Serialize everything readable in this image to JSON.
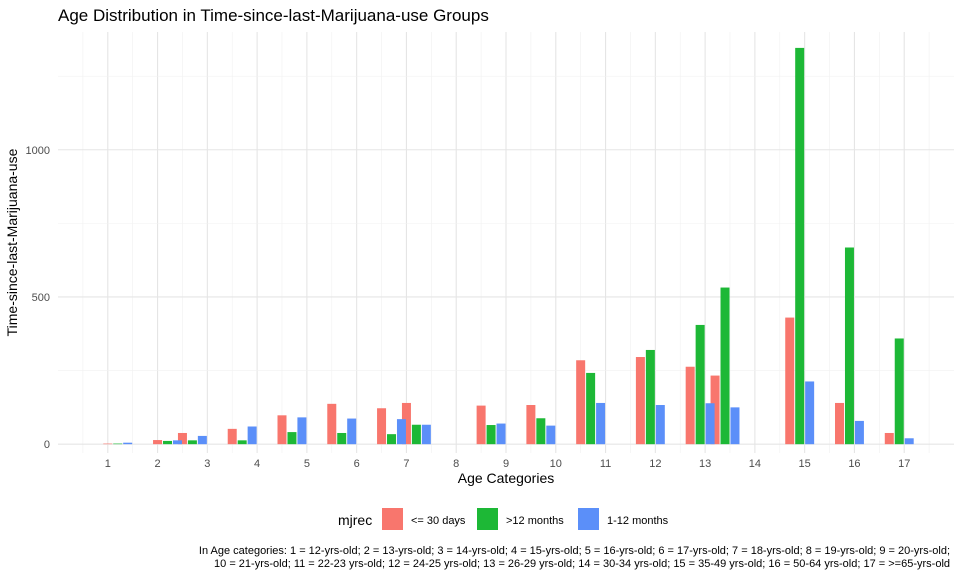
{
  "chart_data": {
    "type": "bar",
    "title": "Age Distribution in Time-since-last-Marijuana-use Groups",
    "xlabel": "Age Categories",
    "ylabel": "Time-since-last-Marijuana-use",
    "ylim": [
      -30,
      1400
    ],
    "yticks": [
      0,
      500,
      1000
    ],
    "grid": true,
    "legend_title": "mjrec",
    "legend_position": "bottom",
    "series": [
      {
        "name": "<= 30 days",
        "color": "#F8766D",
        "points": [
          {
            "x": 1,
            "y": 2
          },
          {
            "x": 2,
            "y": 14
          },
          {
            "x": 2.5,
            "y": 38
          },
          {
            "x": 3.5,
            "y": 52
          },
          {
            "x": 4.5,
            "y": 98
          },
          {
            "x": 5.5,
            "y": 137
          },
          {
            "x": 6.5,
            "y": 122
          },
          {
            "x": 7,
            "y": 140
          },
          {
            "x": 8.5,
            "y": 131
          },
          {
            "x": 9.5,
            "y": 133
          },
          {
            "x": 10.5,
            "y": 285
          },
          {
            "x": 11.7,
            "y": 296
          },
          {
            "x": 12.7,
            "y": 263
          },
          {
            "x": 13.2,
            "y": 233
          },
          {
            "x": 14.7,
            "y": 430
          },
          {
            "x": 15.7,
            "y": 140
          },
          {
            "x": 16.7,
            "y": 38
          }
        ]
      },
      {
        "name": ">12 months",
        "color": "#1DB836",
        "points": [
          {
            "x": 1.2,
            "y": 2
          },
          {
            "x": 2.2,
            "y": 11
          },
          {
            "x": 2.7,
            "y": 13
          },
          {
            "x": 3.7,
            "y": 13
          },
          {
            "x": 4.7,
            "y": 41
          },
          {
            "x": 5.7,
            "y": 38
          },
          {
            "x": 6.7,
            "y": 34
          },
          {
            "x": 7.2,
            "y": 66
          },
          {
            "x": 8.7,
            "y": 65
          },
          {
            "x": 9.7,
            "y": 88
          },
          {
            "x": 10.7,
            "y": 242
          },
          {
            "x": 11.9,
            "y": 320
          },
          {
            "x": 12.9,
            "y": 405
          },
          {
            "x": 13.4,
            "y": 532
          },
          {
            "x": 14.9,
            "y": 1346
          },
          {
            "x": 15.9,
            "y": 668
          },
          {
            "x": 16.9,
            "y": 359
          }
        ]
      },
      {
        "name": "1-12 months",
        "color": "#5B8FF9",
        "points": [
          {
            "x": 1.4,
            "y": 5
          },
          {
            "x": 2.4,
            "y": 13
          },
          {
            "x": 2.9,
            "y": 28
          },
          {
            "x": 3.9,
            "y": 60
          },
          {
            "x": 4.9,
            "y": 91
          },
          {
            "x": 5.9,
            "y": 87
          },
          {
            "x": 6.9,
            "y": 85
          },
          {
            "x": 7.4,
            "y": 66
          },
          {
            "x": 8.9,
            "y": 70
          },
          {
            "x": 9.9,
            "y": 63
          },
          {
            "x": 10.9,
            "y": 140
          },
          {
            "x": 12.1,
            "y": 133
          },
          {
            "x": 13.1,
            "y": 139
          },
          {
            "x": 13.6,
            "y": 125
          },
          {
            "x": 15.1,
            "y": 213
          },
          {
            "x": 16.1,
            "y": 79
          },
          {
            "x": 17.1,
            "y": 20
          }
        ]
      }
    ],
    "caption": [
      "In Age categories: 1 = 12-yrs-old; 2 = 13-yrs-old; 3 = 14-yrs-old; 4 = 15-yrs-old; 5 = 16-yrs-old; 6 = 17-yrs-old; 7 = 18-yrs-old; 8 = 19-yrs-old; 9 = 20-yrs-old;",
      "10 = 21-yrs-old; 11 = 22-23 yrs-old; 12 = 24-25 yrs-old; 13 = 26-29 yrs-old; 14 = 30-34 yrs-old; 15 = 35-49 yrs-old; 16 = 50-64 yrs-old; 17 = >=65-yrs-old"
    ]
  }
}
